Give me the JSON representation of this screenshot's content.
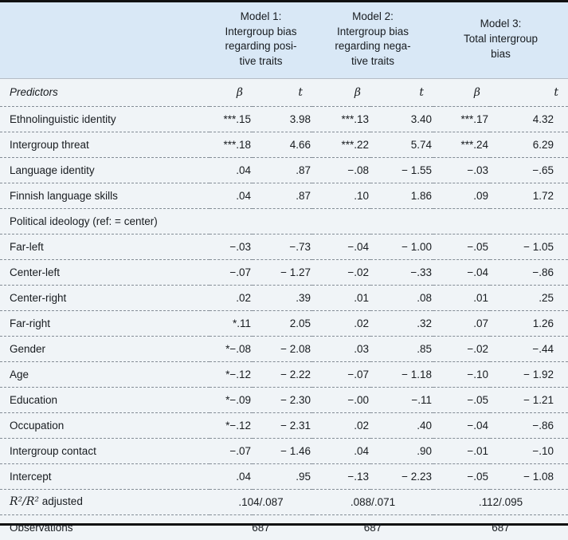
{
  "colors": {
    "header_bg": "#d9e8f6",
    "page_bg": "#f0f4f7",
    "rule_black": "#111111",
    "divider_gray": "#848d96"
  },
  "table": {
    "model_headers": [
      {
        "label": "Model 1:\nIntergroup bias\nregarding posi-\ntive traits"
      },
      {
        "label": "Model 2:\nIntergroup bias\nregarding nega-\ntive traits"
      },
      {
        "label": "Model 3:\nTotal intergroup\nbias"
      }
    ],
    "col_headers": {
      "predictors": "Predictors",
      "beta": "β",
      "t": "t"
    },
    "rows": [
      {
        "label": "Ethnolinguistic identity",
        "cells": [
          "***.15",
          "3.98",
          "***.13",
          "3.40",
          "***.17",
          "4.32"
        ]
      },
      {
        "label": "Intergroup threat",
        "cells": [
          "***.18",
          "4.66",
          "***.22",
          "5.74",
          "***.24",
          "6.29"
        ]
      },
      {
        "label": "Language identity",
        "cells": [
          ".04",
          ".87",
          "−.08",
          "− 1.55",
          "−.03",
          "−.65"
        ]
      },
      {
        "label": "Finnish language skills",
        "cells": [
          ".04",
          ".87",
          ".10",
          "1.86",
          ".09",
          "1.72"
        ]
      },
      {
        "label": "Political ideology (ref: = center)",
        "cells": []
      },
      {
        "label": "Far-left",
        "cells": [
          "−.03",
          "−.73",
          "−.04",
          "− 1.00",
          "−.05",
          "− 1.05"
        ]
      },
      {
        "label": "Center-left",
        "cells": [
          "−.07",
          "− 1.27",
          "−.02",
          "−.33",
          "−.04",
          "−.86"
        ]
      },
      {
        "label": "Center-right",
        "cells": [
          ".02",
          ".39",
          ".01",
          ".08",
          ".01",
          ".25"
        ]
      },
      {
        "label": "Far-right",
        "cells": [
          "*.11",
          "2.05",
          ".02",
          ".32",
          ".07",
          "1.26"
        ]
      },
      {
        "label": "Gender",
        "cells": [
          "*−.08",
          "− 2.08",
          ".03",
          ".85",
          "−.02",
          "−.44"
        ]
      },
      {
        "label": "Age",
        "cells": [
          "*−.12",
          "− 2.22",
          "−.07",
          "− 1.18",
          "−.10",
          "− 1.92"
        ]
      },
      {
        "label": "Education",
        "cells": [
          "*−.09",
          "− 2.30",
          "−.00",
          "−.11",
          "−.05",
          "− 1.21"
        ]
      },
      {
        "label": "Occupation",
        "cells": [
          "*−.12",
          "− 2.31",
          ".02",
          ".40",
          "−.04",
          "−.86"
        ]
      },
      {
        "label": "Intergroup contact",
        "cells": [
          "−.07",
          "− 1.46",
          ".04",
          ".90",
          "−.01",
          "−.10"
        ]
      },
      {
        "label": "Intercept",
        "cells": [
          ".04",
          ".95",
          "−.13",
          "− 2.23",
          "−.05",
          "− 1.08"
        ]
      }
    ],
    "r2_row": {
      "label_math": "R²/R²",
      "label_rest": " adjusted",
      "values": [
        ".104/.087",
        ".088/.071",
        ".112/.095"
      ]
    },
    "observations_row": {
      "label": "Observations",
      "values": [
        "687",
        "687",
        "687"
      ]
    }
  }
}
